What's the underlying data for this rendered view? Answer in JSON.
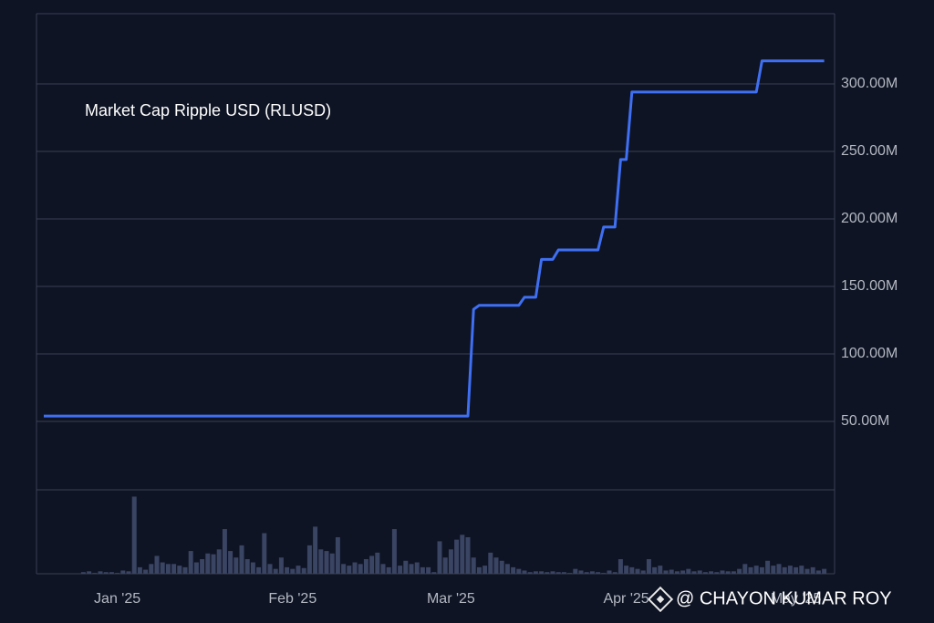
{
  "chart_data": {
    "type": "line",
    "title": "Market Cap Ripple USD (RLUSD)",
    "watermark": "@ CHAYON KUMAR ROY",
    "categories": [
      null,
      null,
      null,
      null,
      null,
      null,
      null,
      null,
      null,
      null,
      null,
      null,
      null,
      "Jan '25",
      null,
      null,
      null,
      null,
      null,
      null,
      null,
      null,
      null,
      null,
      null,
      null,
      null,
      null,
      null,
      null,
      null,
      null,
      null,
      null,
      null,
      null,
      null,
      null,
      null,
      null,
      null,
      null,
      null,
      null,
      "Feb '25",
      null,
      null,
      null,
      null,
      null,
      null,
      null,
      null,
      null,
      null,
      null,
      null,
      null,
      null,
      null,
      null,
      null,
      null,
      null,
      null,
      null,
      null,
      null,
      null,
      null,
      null,
      null,
      "Mar '25",
      null,
      null,
      null,
      null,
      null,
      null,
      null,
      null,
      null,
      null,
      null,
      null,
      null,
      null,
      null,
      null,
      null,
      null,
      null,
      null,
      null,
      null,
      null,
      null,
      null,
      null,
      null,
      null,
      null,
      null,
      "Apr '25",
      null,
      null,
      null,
      null,
      null,
      null,
      null,
      null,
      null,
      null,
      null,
      null,
      null,
      null,
      null,
      null,
      null,
      null,
      null,
      null,
      null,
      null,
      null,
      null,
      null,
      null,
      null,
      null,
      null,
      "May '25",
      null,
      null,
      null,
      null,
      null
    ],
    "series": [
      {
        "name": "Market Cap",
        "color": "#3f6ff2",
        "values": [
          54,
          54,
          54,
          54,
          54,
          54,
          54,
          54,
          54,
          54,
          54,
          54,
          54,
          54,
          54,
          54,
          54,
          54,
          54,
          54,
          54,
          54,
          54,
          54,
          54,
          54,
          54,
          54,
          54,
          54,
          54,
          54,
          54,
          54,
          54,
          54,
          54,
          54,
          54,
          54,
          54,
          54,
          54,
          54,
          54,
          54,
          54,
          54,
          54,
          54,
          54,
          54,
          54,
          54,
          54,
          54,
          54,
          54,
          54,
          54,
          54,
          54,
          54,
          54,
          54,
          54,
          54,
          54,
          54,
          54,
          54,
          54,
          54,
          54,
          54,
          54,
          133,
          136,
          136,
          136,
          136,
          136,
          136,
          136,
          136,
          142,
          142,
          142,
          170,
          170,
          170,
          177,
          177,
          177,
          177,
          177,
          177,
          177,
          177,
          194,
          194,
          194,
          244,
          244,
          294,
          294,
          294,
          294,
          294,
          294,
          294,
          294,
          294,
          294,
          294,
          294,
          294,
          294,
          294,
          294,
          294,
          294,
          294,
          294,
          294,
          294,
          294,
          317,
          317,
          317,
          317,
          317,
          317,
          317,
          317,
          317,
          317,
          317,
          317
        ]
      },
      {
        "name": "Volume",
        "color": "#3a4463",
        "axis": "volume",
        "values": [
          0,
          0,
          0,
          0,
          0,
          0,
          0,
          2,
          3,
          1,
          3,
          2,
          2,
          1,
          4,
          3,
          95,
          8,
          5,
          12,
          22,
          14,
          12,
          12,
          10,
          8,
          28,
          14,
          18,
          25,
          24,
          30,
          55,
          28,
          20,
          35,
          18,
          14,
          8,
          50,
          12,
          6,
          20,
          8,
          6,
          10,
          7,
          35,
          58,
          30,
          28,
          25,
          45,
          12,
          10,
          14,
          12,
          18,
          22,
          26,
          12,
          8,
          55,
          10,
          16,
          12,
          14,
          8,
          8,
          2,
          40,
          20,
          30,
          42,
          48,
          45,
          20,
          8,
          10,
          26,
          20,
          16,
          12,
          8,
          6,
          4,
          2,
          3,
          3,
          2,
          3,
          2,
          2,
          1,
          6,
          4,
          2,
          3,
          2,
          1,
          4,
          2,
          18,
          10,
          8,
          6,
          4,
          18,
          8,
          10,
          4,
          5,
          3,
          4,
          6,
          3,
          4,
          2,
          3,
          2,
          4,
          3,
          3,
          6,
          12,
          8,
          10,
          8,
          16,
          10,
          12,
          8,
          10,
          8,
          10,
          6,
          8,
          4,
          6
        ]
      }
    ],
    "ylim": [
      0,
      352
    ],
    "yticks": [
      {
        "value": 50,
        "label": "50.00M"
      },
      {
        "value": 100,
        "label": "100.00M"
      },
      {
        "value": 150,
        "label": "150.00M"
      },
      {
        "value": 200,
        "label": "200.00M"
      },
      {
        "value": 250,
        "label": "250.00M"
      },
      {
        "value": 300,
        "label": "300.00M"
      }
    ],
    "volume_ylim": [
      0,
      100
    ],
    "grid": true
  }
}
